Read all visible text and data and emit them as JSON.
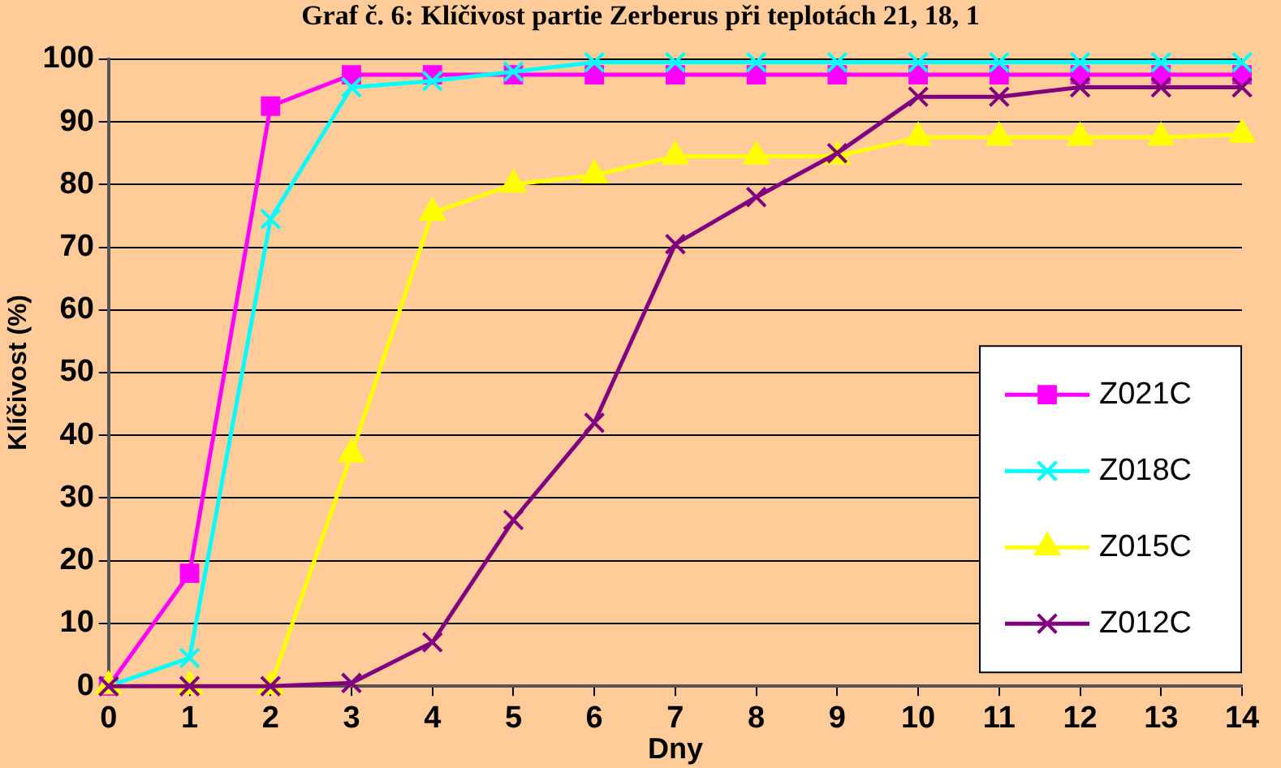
{
  "chart_data": {
    "type": "line",
    "title": "Graf č. 6: Klíčivost partie Zerberus při teplotách 21, 18, 1",
    "xlabel": "Dny",
    "ylabel": "Klíčivost (%)",
    "x": [
      0,
      1,
      2,
      3,
      4,
      5,
      6,
      7,
      8,
      9,
      10,
      11,
      12,
      13,
      14
    ],
    "xlim": [
      0,
      14
    ],
    "xticks": [
      0,
      1,
      2,
      3,
      4,
      5,
      6,
      7,
      8,
      9,
      10,
      11,
      12,
      13,
      14
    ],
    "ylim": [
      0,
      100
    ],
    "yticks": [
      0,
      10,
      20,
      30,
      40,
      50,
      60,
      70,
      80,
      90,
      100
    ],
    "grid": "y",
    "legend": "right",
    "series": [
      {
        "name": "Z021C",
        "color": "#ff00ff",
        "marker": "square",
        "values": [
          0,
          18,
          92.5,
          97.5,
          97.5,
          97.5,
          97.5,
          97.5,
          97.5,
          97.5,
          97.5,
          97.5,
          97.5,
          97.5,
          97.5
        ]
      },
      {
        "name": "Z018C",
        "color": "#00ffff",
        "marker": "cross",
        "values": [
          0,
          4.5,
          74.5,
          95.5,
          96.5,
          98,
          99.5,
          99.5,
          99.5,
          99.5,
          99.5,
          99.5,
          99.5,
          99.5,
          99.5
        ]
      },
      {
        "name": "Z015C",
        "color": "#ffff00",
        "marker": "triangle",
        "values": [
          0,
          0,
          0,
          37,
          75.5,
          80,
          81.5,
          84.5,
          84.5,
          84.5,
          87.5,
          87.5,
          87.5,
          87.5,
          88
        ]
      },
      {
        "name": "Z012C",
        "color": "#800080",
        "marker": "cross",
        "values": [
          0,
          0,
          0,
          0.5,
          7,
          26.5,
          42,
          70.5,
          78,
          85,
          94,
          94,
          95.5,
          95.5,
          95.5
        ]
      }
    ]
  }
}
